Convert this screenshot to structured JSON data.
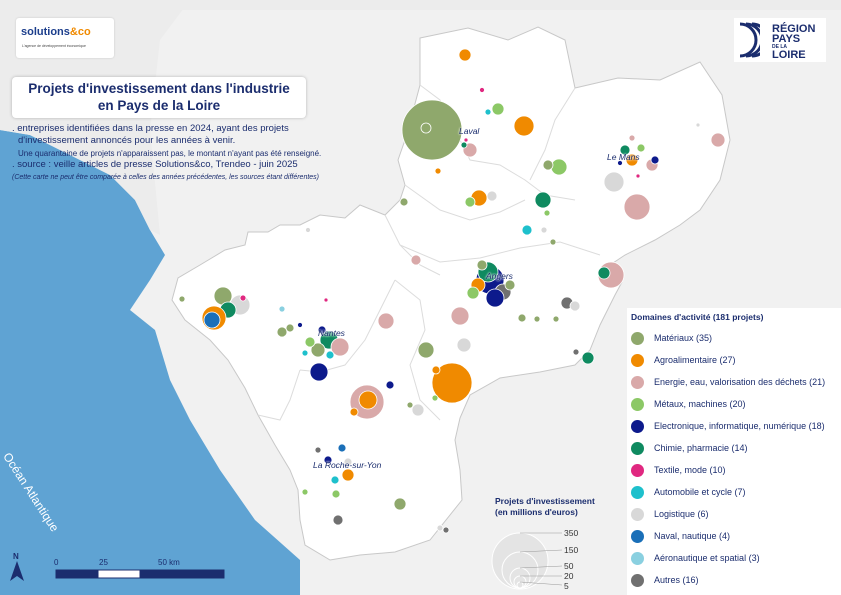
{
  "title": {
    "line1": "Projets d'investissement dans l'industrie",
    "line2": "en Pays de la Loire"
  },
  "info": {
    "line1": ". entreprises identifiées dans la presse en 2024, ayant des projets",
    "line2": "d'investissement annoncés pour les années à venir.",
    "line3": "Une quarantaine de projets n'apparaissent pas, le montant n'ayant pas été renseigné.",
    "line4": ". source : veille articles de presse Solutions&co, Trendeo - juin 2025",
    "line5": "(Cette carte ne peut être comparée à celles des années précédentes, les sources étant différentes)"
  },
  "logos": {
    "left_brand_1": "solutions",
    "left_brand_2": "&co",
    "left_tagline": "L'agence de développement économique",
    "right_line1": "RÉGION",
    "right_line2": "PAYS",
    "right_line3": "DE LA",
    "right_line4": "LOIRE"
  },
  "towns": {
    "laval": "Laval",
    "le_mans": "Le Mans",
    "angers": "Angers",
    "nantes": "Nantes",
    "la_roche": "La Roche-sur-Yon"
  },
  "ocean": "Océan Atlantique",
  "north": "N",
  "scale": {
    "l0": "0",
    "l1": "25",
    "l2": "50 km"
  },
  "legend": {
    "title": "Domaines d'activité (181 projets)",
    "items": [
      {
        "label": "Matériaux (35)",
        "color": "#8fa86c"
      },
      {
        "label": "Agroalimentaire (27)",
        "color": "#f08a00"
      },
      {
        "label": "Energie, eau, valorisation des déchets (21)",
        "color": "#d9a9a9"
      },
      {
        "label": "Métaux, machines (20)",
        "color": "#8cc866"
      },
      {
        "label": "Electronique, informatique, numérique (18)",
        "color": "#0d1a8c"
      },
      {
        "label": "Chimie, pharmacie (14)",
        "color": "#0f8a60"
      },
      {
        "label": "Textile, mode (10)",
        "color": "#e02880"
      },
      {
        "label": "Automobile et cycle (7)",
        "color": "#1ec0cc"
      },
      {
        "label": "Logistique (6)",
        "color": "#d8d8d8"
      },
      {
        "label": "Naval, nautique (4)",
        "color": "#1a6fb8"
      },
      {
        "label": "Aéronautique et spatial (3)",
        "color": "#8ad0e0"
      },
      {
        "label": "Autres (16)",
        "color": "#707070"
      }
    ]
  },
  "size_legend": {
    "title_line1": "Projets d'investissement",
    "title_line2": "(en millions d'euros)",
    "values": [
      "350",
      "150",
      "50",
      "20",
      "5"
    ]
  }
}
